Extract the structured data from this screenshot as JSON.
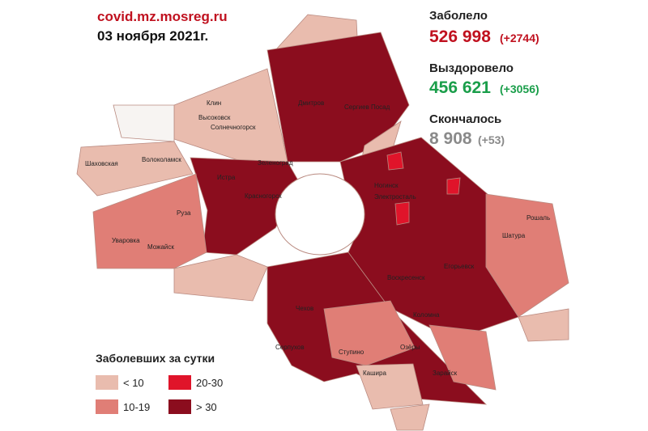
{
  "header": {
    "source": "covid.mz.mosreg.ru",
    "date": "03 ноября 2021г."
  },
  "stats": [
    {
      "label": "Заболело",
      "value": "526 998",
      "delta": "(+2744)",
      "color": "#c0111f"
    },
    {
      "label": "Выздоровело",
      "value": "456 621",
      "delta": "(+3056)",
      "color": "#1a9e4a"
    },
    {
      "label": "Скончалось",
      "value": "8 908",
      "delta": "(+53)",
      "color": "#8a8a8a"
    }
  ],
  "legend": {
    "title": "Заболевших за сутки",
    "items": [
      {
        "label": "< 10",
        "color": "#e9bcae"
      },
      {
        "label": "10-19",
        "color": "#e07e76"
      },
      {
        "label": "20-30",
        "color": "#e0142a"
      },
      {
        "label": "> 30",
        "color": "#8b0d1e"
      }
    ]
  },
  "places": [
    "Клин",
    "Высоковск",
    "Солнечногорск",
    "Шаховская",
    "Волоколамск",
    "Дмитров",
    "Сергиев Посад",
    "Зеленоград",
    "Истра",
    "Красногорск",
    "Руза",
    "Уваровка",
    "Можайск",
    "Ногинск",
    "Электросталь",
    "Шатура",
    "Рошаль",
    "Егорьевск",
    "Воскресенск",
    "Коломна",
    "Серпухов",
    "Чехов",
    "Ступино",
    "Озёры",
    "Кашира",
    "Зарайск"
  ]
}
